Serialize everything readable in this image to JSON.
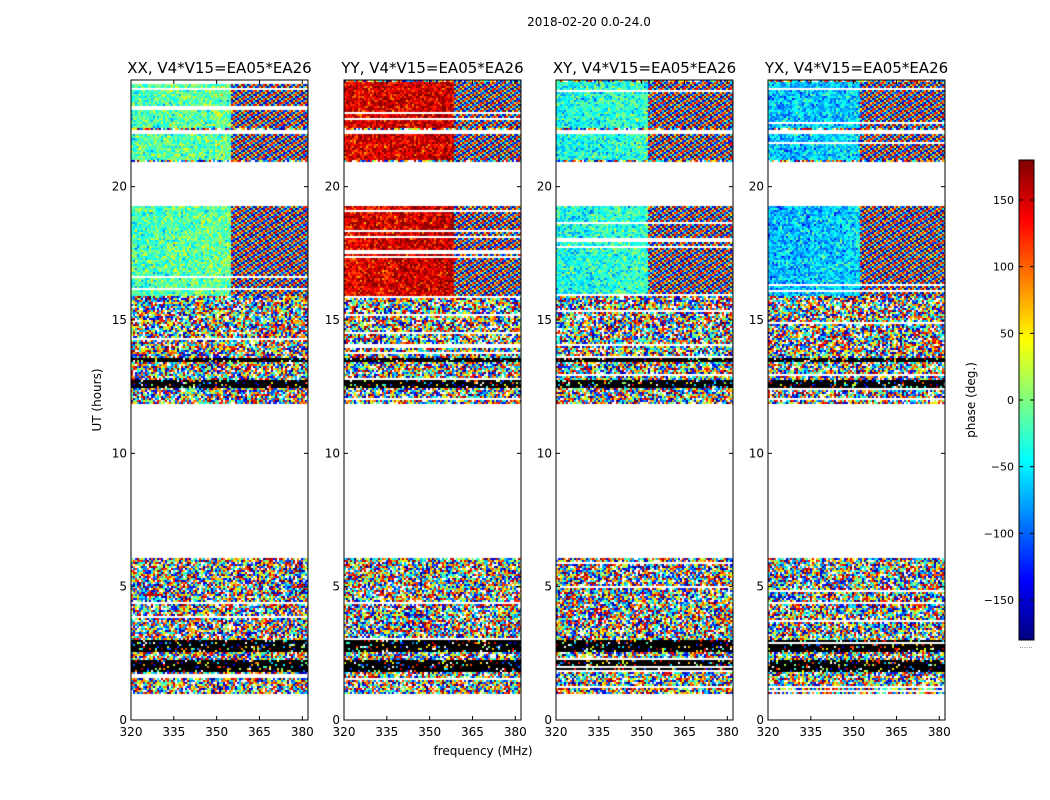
{
  "figure": {
    "suptitle": "2018-02-20 0.0-24.0",
    "xlabel": "frequency (MHz)",
    "ylabel": "UT (hours)",
    "colorbar": {
      "label": "phase (deg.)",
      "ticks": [
        150,
        100,
        50,
        0,
        -50,
        -100,
        -150
      ],
      "range": [
        -180,
        180
      ],
      "colormap": "jet",
      "colors": [
        "#00007f",
        "#0000ff",
        "#007fff",
        "#00ffff",
        "#7fff7f",
        "#ffff00",
        "#ff7f00",
        "#ff0000",
        "#7f0000"
      ],
      "offset_text": "......"
    }
  },
  "chart_data": [
    {
      "type": "heatmap",
      "title": "XX, V4*V15=EA05*EA26",
      "xlabel": "",
      "ylabel": "UT (hours)",
      "xlim": [
        320,
        382
      ],
      "ylim": [
        0,
        24
      ],
      "xticks": [
        320,
        335,
        350,
        365,
        380
      ],
      "yticks": [
        0,
        5,
        10,
        15,
        20
      ],
      "z_label": "phase (deg.)",
      "z_range": [
        -180,
        180
      ],
      "coherent_phase_deg": -20,
      "coherent_freq_range": [
        320,
        355
      ],
      "data_ut_ranges": [
        [
          0,
          0.05
        ],
        [
          1.0,
          6.1
        ],
        [
          11.9,
          13.7
        ],
        [
          13.7,
          16.0
        ],
        [
          15.9,
          19.3
        ],
        [
          21.0,
          22.0
        ],
        [
          22.2,
          24.0
        ]
      ],
      "black_bands": [
        [
          1.8,
          2.25
        ],
        [
          2.6,
          3.05
        ],
        [
          12.5,
          12.8
        ],
        [
          13.5,
          13.62
        ]
      ],
      "white_gaps": [
        [
          0.05,
          1.0
        ],
        [
          6.1,
          11.9
        ],
        [
          19.3,
          21.0
        ],
        [
          22.0,
          22.2
        ]
      ]
    },
    {
      "type": "heatmap",
      "title": "YY, V4*V15=EA05*EA26",
      "xlabel": "frequency (MHz)",
      "ylabel": "",
      "xlim": [
        320,
        382
      ],
      "ylim": [
        0,
        24
      ],
      "xticks": [
        320,
        335,
        350,
        365,
        380
      ],
      "yticks": [
        0,
        5,
        10,
        15,
        20
      ],
      "z_label": "phase (deg.)",
      "z_range": [
        -180,
        180
      ],
      "coherent_phase_deg": 140,
      "coherent_freq_range": [
        320,
        358
      ],
      "data_ut_ranges": [
        [
          0,
          0.05
        ],
        [
          1.0,
          6.1
        ],
        [
          11.9,
          13.7
        ],
        [
          13.7,
          16.0
        ],
        [
          15.9,
          19.3
        ],
        [
          21.0,
          22.0
        ],
        [
          22.2,
          24.0
        ]
      ],
      "black_bands": [
        [
          1.8,
          2.25
        ],
        [
          2.6,
          3.05
        ],
        [
          12.5,
          12.8
        ],
        [
          13.5,
          13.62
        ]
      ],
      "white_gaps": [
        [
          0.05,
          1.0
        ],
        [
          6.1,
          11.9
        ],
        [
          19.3,
          21.0
        ],
        [
          22.0,
          22.2
        ]
      ]
    },
    {
      "type": "heatmap",
      "title": "XY, V4*V15=EA05*EA26",
      "xlabel": "",
      "ylabel": "",
      "xlim": [
        320,
        382
      ],
      "ylim": [
        0,
        24
      ],
      "xticks": [
        320,
        335,
        350,
        365,
        380
      ],
      "yticks": [
        0,
        5,
        10,
        15,
        20
      ],
      "z_label": "phase (deg.)",
      "z_range": [
        -180,
        180
      ],
      "coherent_phase_deg": -40,
      "coherent_freq_range": [
        320,
        352
      ],
      "data_ut_ranges": [
        [
          0,
          0.05
        ],
        [
          1.0,
          6.1
        ],
        [
          11.9,
          13.7
        ],
        [
          13.7,
          16.0
        ],
        [
          15.9,
          19.3
        ],
        [
          21.0,
          22.0
        ],
        [
          22.2,
          24.0
        ]
      ],
      "black_bands": [
        [
          1.8,
          2.25
        ],
        [
          2.6,
          3.05
        ],
        [
          12.5,
          12.8
        ],
        [
          13.5,
          13.62
        ]
      ],
      "white_gaps": [
        [
          0.05,
          1.0
        ],
        [
          6.1,
          11.9
        ],
        [
          19.3,
          21.0
        ],
        [
          22.0,
          22.2
        ]
      ]
    },
    {
      "type": "heatmap",
      "title": "YX, V4*V15=EA05*EA26",
      "xlabel": "",
      "ylabel": "",
      "xlim": [
        320,
        382
      ],
      "ylim": [
        0,
        24
      ],
      "xticks": [
        320,
        335,
        350,
        365,
        380
      ],
      "yticks": [
        0,
        5,
        10,
        15,
        20
      ],
      "z_label": "phase (deg.)",
      "z_range": [
        -180,
        180
      ],
      "coherent_phase_deg": -70,
      "coherent_freq_range": [
        320,
        352
      ],
      "data_ut_ranges": [
        [
          0,
          0.05
        ],
        [
          1.0,
          6.1
        ],
        [
          11.9,
          13.7
        ],
        [
          13.7,
          16.0
        ],
        [
          15.9,
          19.3
        ],
        [
          21.0,
          22.0
        ],
        [
          22.2,
          24.0
        ]
      ],
      "black_bands": [
        [
          1.8,
          2.25
        ],
        [
          2.6,
          3.05
        ],
        [
          12.5,
          12.8
        ],
        [
          13.5,
          13.62
        ]
      ],
      "white_gaps": [
        [
          0.05,
          1.0
        ],
        [
          6.1,
          11.9
        ],
        [
          19.3,
          21.0
        ],
        [
          22.0,
          22.2
        ]
      ]
    }
  ]
}
